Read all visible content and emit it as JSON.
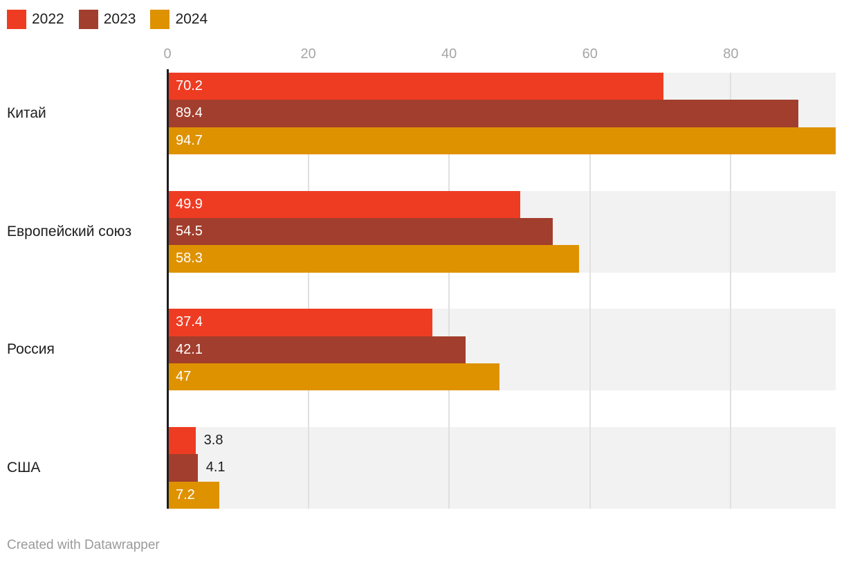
{
  "legend": {
    "items": [
      {
        "label": "2022",
        "color": "#ee3c23"
      },
      {
        "label": "2023",
        "color": "#a23e2d"
      },
      {
        "label": "2024",
        "color": "#de9200"
      }
    ]
  },
  "chart_data": {
    "type": "bar",
    "orientation": "horizontal",
    "categories": [
      "Китай",
      "Европейский союз",
      "Россия",
      "США"
    ],
    "series": [
      {
        "name": "2022",
        "color": "#ee3c23",
        "values": [
          70.2,
          49.9,
          37.4,
          3.8
        ]
      },
      {
        "name": "2023",
        "color": "#a23e2d",
        "values": [
          89.4,
          54.5,
          42.1,
          4.1
        ]
      },
      {
        "name": "2024",
        "color": "#de9200",
        "values": [
          94.7,
          58.3,
          47,
          7.2
        ]
      }
    ],
    "x_ticks": [
      0,
      20,
      40,
      60,
      80
    ],
    "x_range": [
      0,
      94.7
    ],
    "grid": true,
    "legend_position": "top",
    "value_labels": true
  },
  "style": {
    "row_band": "#f2f2f2",
    "gridline": "#e0e0e0",
    "tick_text": "#a6a6a6",
    "category_text": "#1d1d1d",
    "value_text_inside": "#ffffff",
    "value_text_outside": "#1d1d1d",
    "axis_line": "#1d1d1d",
    "credit_text": "#9a9a9a"
  },
  "footer": {
    "credit": "Created with Datawrapper"
  }
}
